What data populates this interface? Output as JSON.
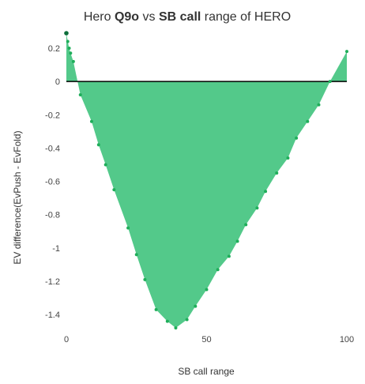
{
  "chart_data": {
    "type": "area",
    "title_parts": [
      {
        "text": "Hero ",
        "bold": false
      },
      {
        "text": "Q9o",
        "bold": true
      },
      {
        "text": " vs ",
        "bold": false
      },
      {
        "text": "SB call",
        "bold": true
      },
      {
        "text": " range of HERO",
        "bold": false
      }
    ],
    "xlabel": "SB call range",
    "ylabel": "EV difference(EvPush - EvFold)",
    "xlim": [
      0,
      100
    ],
    "ylim": [
      -1.48,
      0.29
    ],
    "x_ticks": [
      0,
      50,
      100
    ],
    "y_ticks": [
      0.2,
      0,
      -0.2,
      -0.4,
      -0.6,
      -0.8,
      -1,
      -1.2,
      -1.4
    ],
    "grid": false,
    "area_color": "#53c98a",
    "point_color": "#1fae5a",
    "zero_line_color": "#000000",
    "series": [
      {
        "x": [
          0,
          0.5,
          1,
          1.5,
          2.5,
          5,
          9,
          11.5,
          14,
          17,
          22,
          25,
          28,
          32,
          36,
          39,
          43,
          46,
          50,
          54,
          58,
          61,
          64,
          68,
          71,
          75,
          79,
          82,
          86,
          90,
          94,
          100
        ],
        "values": [
          0.29,
          0.24,
          0.2,
          0.17,
          0.12,
          -0.08,
          -0.24,
          -0.38,
          -0.5,
          -0.65,
          -0.88,
          -1.04,
          -1.19,
          -1.37,
          -1.44,
          -1.48,
          -1.43,
          -1.35,
          -1.25,
          -1.13,
          -1.05,
          -0.96,
          -0.86,
          -0.76,
          -0.66,
          -0.55,
          -0.46,
          -0.34,
          -0.24,
          -0.14,
          0.0,
          0.18
        ]
      }
    ]
  }
}
